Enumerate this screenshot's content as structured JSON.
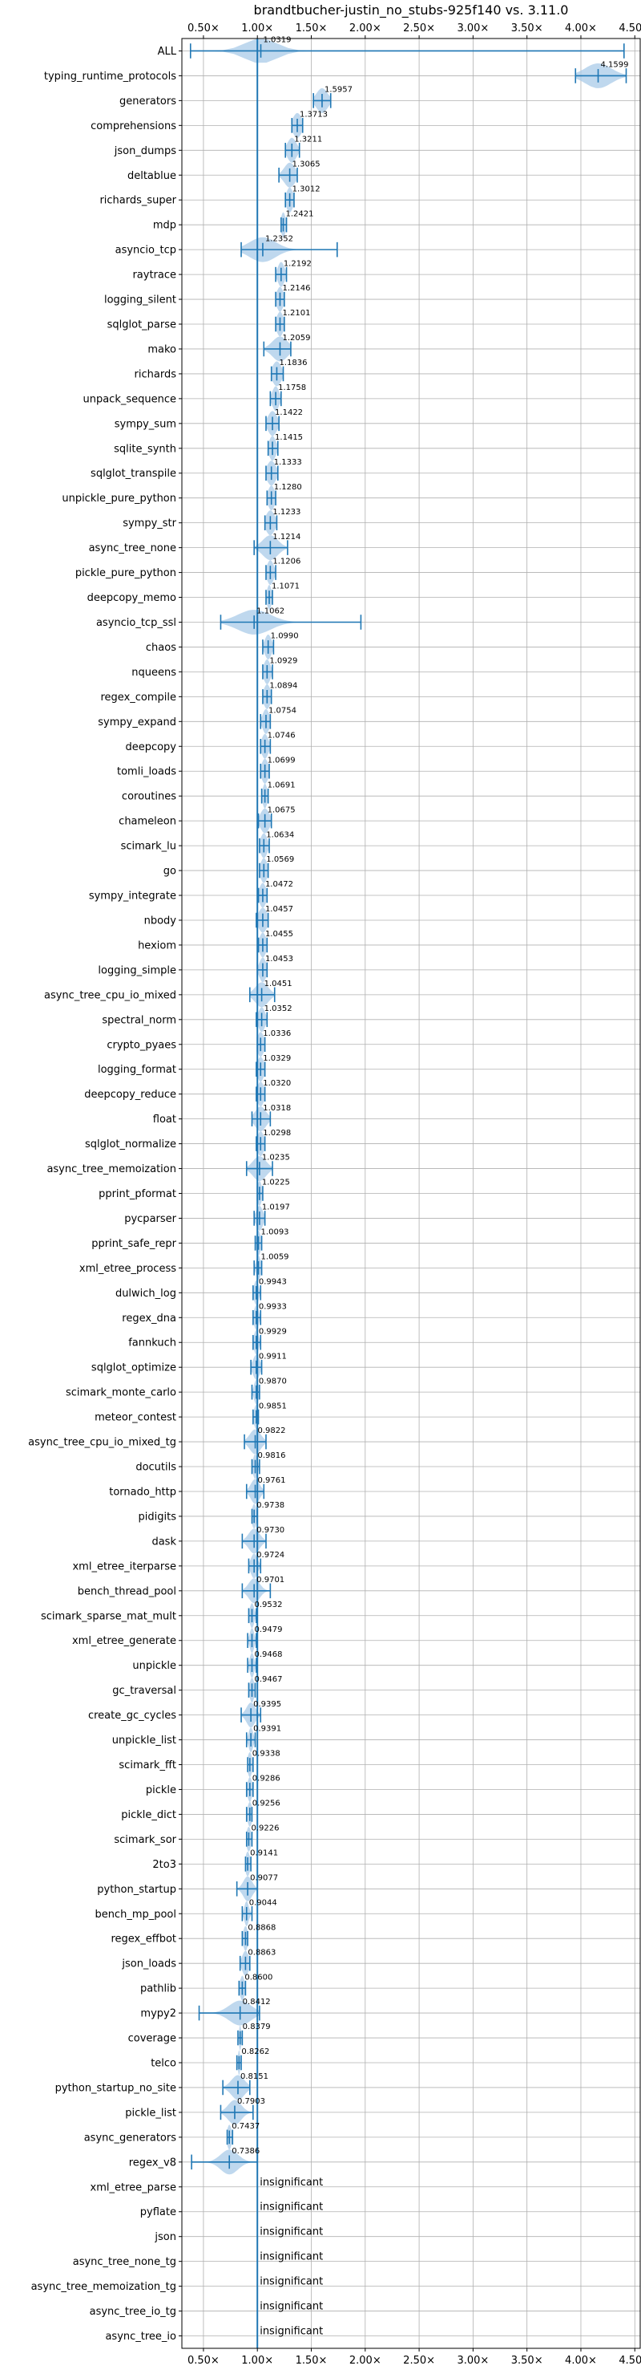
{
  "chart_data": {
    "type": "violin",
    "title": "brandtbucher-justin_no_stubs-925f140 vs. 3.11.0",
    "xlabel": "",
    "ylabel": "",
    "xlim": [
      0.3,
      4.55
    ],
    "grid": true,
    "x_ticks": [
      0.5,
      1.0,
      1.5,
      2.0,
      2.5,
      3.0,
      3.5,
      4.0,
      4.5
    ],
    "x_tick_labels": [
      "0.50×",
      "1.00×",
      "1.50×",
      "2.00×",
      "2.50×",
      "3.00×",
      "3.50×",
      "4.00×",
      "4.50×"
    ],
    "reference_line": 1.0,
    "insignificant_label": "insignificant",
    "colors": {
      "violin": "#a9cbe8",
      "line": "#1f77b4",
      "grid": "#b0b0b0",
      "text": "#000000"
    },
    "benchmarks": [
      {
        "name": "ALL",
        "label": "1.0319",
        "center": 1.0319,
        "min": 0.38,
        "max": 4.4,
        "spread": 0.15
      },
      {
        "name": "typing_runtime_protocols",
        "label": "4.1599",
        "center": 4.16,
        "min": 3.95,
        "max": 4.42,
        "spread": 0.12
      },
      {
        "name": "generators",
        "label": "1.5957",
        "center": 1.6,
        "min": 1.52,
        "max": 1.68,
        "spread": 0.05
      },
      {
        "name": "comprehensions",
        "label": "1.3713",
        "center": 1.37,
        "min": 1.32,
        "max": 1.42,
        "spread": 0.04
      },
      {
        "name": "json_dumps",
        "label": "1.3211",
        "center": 1.32,
        "min": 1.26,
        "max": 1.39,
        "spread": 0.04
      },
      {
        "name": "deltablue",
        "label": "1.3065",
        "center": 1.3,
        "min": 1.2,
        "max": 1.37,
        "spread": 0.05
      },
      {
        "name": "richards_super",
        "label": "1.3012",
        "center": 1.3,
        "min": 1.26,
        "max": 1.34,
        "spread": 0.03
      },
      {
        "name": "mdp",
        "label": "1.2421",
        "center": 1.24,
        "min": 1.22,
        "max": 1.27,
        "spread": 0.02
      },
      {
        "name": "asyncio_tcp",
        "label": "1.2352",
        "center": 1.05,
        "min": 0.85,
        "max": 1.74,
        "spread": 0.12
      },
      {
        "name": "raytrace",
        "label": "1.2192",
        "center": 1.22,
        "min": 1.17,
        "max": 1.27,
        "spread": 0.03
      },
      {
        "name": "logging_silent",
        "label": "1.2146",
        "center": 1.21,
        "min": 1.17,
        "max": 1.25,
        "spread": 0.03
      },
      {
        "name": "sqlglot_parse",
        "label": "1.2101",
        "center": 1.21,
        "min": 1.17,
        "max": 1.25,
        "spread": 0.03
      },
      {
        "name": "mako",
        "label": "1.2059",
        "center": 1.21,
        "min": 1.06,
        "max": 1.31,
        "spread": 0.07
      },
      {
        "name": "richards",
        "label": "1.1836",
        "center": 1.18,
        "min": 1.13,
        "max": 1.24,
        "spread": 0.04
      },
      {
        "name": "unpack_sequence",
        "label": "1.1758",
        "center": 1.17,
        "min": 1.12,
        "max": 1.22,
        "spread": 0.03
      },
      {
        "name": "sympy_sum",
        "label": "1.1422",
        "center": 1.14,
        "min": 1.08,
        "max": 1.2,
        "spread": 0.04
      },
      {
        "name": "sqlite_synth",
        "label": "1.1415",
        "center": 1.14,
        "min": 1.1,
        "max": 1.19,
        "spread": 0.03
      },
      {
        "name": "sqlglot_transpile",
        "label": "1.1333",
        "center": 1.13,
        "min": 1.08,
        "max": 1.19,
        "spread": 0.04
      },
      {
        "name": "unpickle_pure_python",
        "label": "1.1280",
        "center": 1.13,
        "min": 1.09,
        "max": 1.17,
        "spread": 0.03
      },
      {
        "name": "sympy_str",
        "label": "1.1233",
        "center": 1.12,
        "min": 1.07,
        "max": 1.18,
        "spread": 0.04
      },
      {
        "name": "async_tree_none",
        "label": "1.1214",
        "center": 1.12,
        "min": 0.97,
        "max": 1.28,
        "spread": 0.07
      },
      {
        "name": "pickle_pure_python",
        "label": "1.1206",
        "center": 1.12,
        "min": 1.08,
        "max": 1.17,
        "spread": 0.03
      },
      {
        "name": "deepcopy_memo",
        "label": "1.1071",
        "center": 1.11,
        "min": 1.08,
        "max": 1.14,
        "spread": 0.02
      },
      {
        "name": "asyncio_tcp_ssl",
        "label": "1.1062",
        "center": 0.97,
        "min": 0.66,
        "max": 1.96,
        "spread": 0.15
      },
      {
        "name": "chaos",
        "label": "1.0990",
        "center": 1.1,
        "min": 1.05,
        "max": 1.15,
        "spread": 0.03
      },
      {
        "name": "nqueens",
        "label": "1.0929",
        "center": 1.09,
        "min": 1.05,
        "max": 1.14,
        "spread": 0.03
      },
      {
        "name": "regex_compile",
        "label": "1.0894",
        "center": 1.09,
        "min": 1.05,
        "max": 1.13,
        "spread": 0.03
      },
      {
        "name": "sympy_expand",
        "label": "1.0754",
        "center": 1.08,
        "min": 1.03,
        "max": 1.12,
        "spread": 0.03
      },
      {
        "name": "deepcopy",
        "label": "1.0746",
        "center": 1.07,
        "min": 1.03,
        "max": 1.12,
        "spread": 0.03
      },
      {
        "name": "tomli_loads",
        "label": "1.0699",
        "center": 1.07,
        "min": 1.03,
        "max": 1.11,
        "spread": 0.03
      },
      {
        "name": "coroutines",
        "label": "1.0691",
        "center": 1.07,
        "min": 1.04,
        "max": 1.1,
        "spread": 0.02
      },
      {
        "name": "chameleon",
        "label": "1.0675",
        "center": 1.07,
        "min": 1.01,
        "max": 1.13,
        "spread": 0.04
      },
      {
        "name": "scimark_lu",
        "label": "1.0634",
        "center": 1.06,
        "min": 1.02,
        "max": 1.11,
        "spread": 0.03
      },
      {
        "name": "go",
        "label": "1.0569",
        "center": 1.06,
        "min": 1.02,
        "max": 1.1,
        "spread": 0.03
      },
      {
        "name": "sympy_integrate",
        "label": "1.0472",
        "center": 1.05,
        "min": 1.01,
        "max": 1.09,
        "spread": 0.03
      },
      {
        "name": "nbody",
        "label": "1.0457",
        "center": 1.05,
        "min": 0.99,
        "max": 1.1,
        "spread": 0.04
      },
      {
        "name": "hexiom",
        "label": "1.0455",
        "center": 1.05,
        "min": 1.01,
        "max": 1.09,
        "spread": 0.03
      },
      {
        "name": "logging_simple",
        "label": "1.0453",
        "center": 1.05,
        "min": 1.0,
        "max": 1.09,
        "spread": 0.03
      },
      {
        "name": "async_tree_cpu_io_mixed",
        "label": "1.0451",
        "center": 1.04,
        "min": 0.93,
        "max": 1.16,
        "spread": 0.06
      },
      {
        "name": "spectral_norm",
        "label": "1.0352",
        "center": 1.04,
        "min": 0.99,
        "max": 1.09,
        "spread": 0.03
      },
      {
        "name": "crypto_pyaes",
        "label": "1.0336",
        "center": 1.03,
        "min": 1.0,
        "max": 1.07,
        "spread": 0.03
      },
      {
        "name": "logging_format",
        "label": "1.0329",
        "center": 1.03,
        "min": 0.99,
        "max": 1.07,
        "spread": 0.03
      },
      {
        "name": "deepcopy_reduce",
        "label": "1.0320",
        "center": 1.03,
        "min": 0.99,
        "max": 1.07,
        "spread": 0.03
      },
      {
        "name": "float",
        "label": "1.0318",
        "center": 1.03,
        "min": 0.95,
        "max": 1.12,
        "spread": 0.05
      },
      {
        "name": "sqlglot_normalize",
        "label": "1.0298",
        "center": 1.03,
        "min": 0.99,
        "max": 1.07,
        "spread": 0.03
      },
      {
        "name": "async_tree_memoization",
        "label": "1.0235",
        "center": 1.02,
        "min": 0.9,
        "max": 1.14,
        "spread": 0.06
      },
      {
        "name": "pprint_pformat",
        "label": "1.0225",
        "center": 1.02,
        "min": 1.0,
        "max": 1.05,
        "spread": 0.02
      },
      {
        "name": "pycparser",
        "label": "1.0197",
        "center": 1.02,
        "min": 0.97,
        "max": 1.07,
        "spread": 0.03
      },
      {
        "name": "pprint_safe_repr",
        "label": "1.0093",
        "center": 1.01,
        "min": 0.98,
        "max": 1.04,
        "spread": 0.02
      },
      {
        "name": "xml_etree_process",
        "label": "1.0059",
        "center": 1.01,
        "min": 0.97,
        "max": 1.04,
        "spread": 0.02
      },
      {
        "name": "dulwich_log",
        "label": "0.9943",
        "center": 0.99,
        "min": 0.96,
        "max": 1.03,
        "spread": 0.02
      },
      {
        "name": "regex_dna",
        "label": "0.9933",
        "center": 0.99,
        "min": 0.96,
        "max": 1.03,
        "spread": 0.02
      },
      {
        "name": "fannkuch",
        "label": "0.9929",
        "center": 0.99,
        "min": 0.96,
        "max": 1.03,
        "spread": 0.02
      },
      {
        "name": "sqlglot_optimize",
        "label": "0.9911",
        "center": 0.99,
        "min": 0.94,
        "max": 1.04,
        "spread": 0.03
      },
      {
        "name": "scimark_monte_carlo",
        "label": "0.9870",
        "center": 0.99,
        "min": 0.95,
        "max": 1.02,
        "spread": 0.02
      },
      {
        "name": "meteor_contest",
        "label": "0.9851",
        "center": 0.99,
        "min": 0.96,
        "max": 1.01,
        "spread": 0.02
      },
      {
        "name": "async_tree_cpu_io_mixed_tg",
        "label": "0.9822",
        "center": 0.98,
        "min": 0.88,
        "max": 1.08,
        "spread": 0.05
      },
      {
        "name": "docutils",
        "label": "0.9816",
        "center": 0.98,
        "min": 0.95,
        "max": 1.02,
        "spread": 0.02
      },
      {
        "name": "tornado_http",
        "label": "0.9761",
        "center": 0.98,
        "min": 0.9,
        "max": 1.06,
        "spread": 0.04
      },
      {
        "name": "pidigits",
        "label": "0.9738",
        "center": 0.97,
        "min": 0.95,
        "max": 1.0,
        "spread": 0.02
      },
      {
        "name": "dask",
        "label": "0.9730",
        "center": 0.97,
        "min": 0.86,
        "max": 1.08,
        "spread": 0.05
      },
      {
        "name": "xml_etree_iterparse",
        "label": "0.9724",
        "center": 0.97,
        "min": 0.92,
        "max": 1.03,
        "spread": 0.03
      },
      {
        "name": "bench_thread_pool",
        "label": "0.9701",
        "center": 0.97,
        "min": 0.86,
        "max": 1.12,
        "spread": 0.05
      },
      {
        "name": "scimark_sparse_mat_mult",
        "label": "0.9532",
        "center": 0.95,
        "min": 0.92,
        "max": 0.99,
        "spread": 0.02
      },
      {
        "name": "xml_etree_generate",
        "label": "0.9479",
        "center": 0.95,
        "min": 0.91,
        "max": 0.99,
        "spread": 0.02
      },
      {
        "name": "unpickle",
        "label": "0.9468",
        "center": 0.95,
        "min": 0.91,
        "max": 0.99,
        "spread": 0.02
      },
      {
        "name": "gc_traversal",
        "label": "0.9467",
        "center": 0.95,
        "min": 0.92,
        "max": 0.98,
        "spread": 0.02
      },
      {
        "name": "create_gc_cycles",
        "label": "0.9395",
        "center": 0.94,
        "min": 0.85,
        "max": 1.03,
        "spread": 0.04
      },
      {
        "name": "unpickle_list",
        "label": "0.9391",
        "center": 0.94,
        "min": 0.9,
        "max": 0.98,
        "spread": 0.02
      },
      {
        "name": "scimark_fft",
        "label": "0.9338",
        "center": 0.93,
        "min": 0.91,
        "max": 0.96,
        "spread": 0.02
      },
      {
        "name": "pickle",
        "label": "0.9286",
        "center": 0.93,
        "min": 0.9,
        "max": 0.96,
        "spread": 0.02
      },
      {
        "name": "pickle_dict",
        "label": "0.9256",
        "center": 0.93,
        "min": 0.9,
        "max": 0.95,
        "spread": 0.02
      },
      {
        "name": "scimark_sor",
        "label": "0.9226",
        "center": 0.92,
        "min": 0.9,
        "max": 0.95,
        "spread": 0.02
      },
      {
        "name": "2to3",
        "label": "0.9141",
        "center": 0.91,
        "min": 0.89,
        "max": 0.94,
        "spread": 0.02
      },
      {
        "name": "python_startup",
        "label": "0.9077",
        "center": 0.91,
        "min": 0.81,
        "max": 1.0,
        "spread": 0.04
      },
      {
        "name": "bench_mp_pool",
        "label": "0.9044",
        "center": 0.9,
        "min": 0.86,
        "max": 0.95,
        "spread": 0.02
      },
      {
        "name": "regex_effbot",
        "label": "0.8868",
        "center": 0.89,
        "min": 0.86,
        "max": 0.91,
        "spread": 0.02
      },
      {
        "name": "json_loads",
        "label": "0.8863",
        "center": 0.89,
        "min": 0.84,
        "max": 0.93,
        "spread": 0.03
      },
      {
        "name": "pathlib",
        "label": "0.8600",
        "center": 0.86,
        "min": 0.83,
        "max": 0.89,
        "spread": 0.02
      },
      {
        "name": "mypy2",
        "label": "0.8412",
        "center": 0.84,
        "min": 0.46,
        "max": 1.02,
        "spread": 0.1
      },
      {
        "name": "coverage",
        "label": "0.8379",
        "center": 0.84,
        "min": 0.82,
        "max": 0.86,
        "spread": 0.01
      },
      {
        "name": "telco",
        "label": "0.8262",
        "center": 0.83,
        "min": 0.81,
        "max": 0.85,
        "spread": 0.01
      },
      {
        "name": "python_startup_no_site",
        "label": "0.8151",
        "center": 0.82,
        "min": 0.68,
        "max": 0.93,
        "spread": 0.06
      },
      {
        "name": "pickle_list",
        "label": "0.7903",
        "center": 0.79,
        "min": 0.66,
        "max": 0.96,
        "spread": 0.06
      },
      {
        "name": "async_generators",
        "label": "0.7437",
        "center": 0.74,
        "min": 0.72,
        "max": 0.77,
        "spread": 0.02
      },
      {
        "name": "regex_v8",
        "label": "0.7386",
        "center": 0.74,
        "min": 0.39,
        "max": 1.0,
        "spread": 0.08
      },
      {
        "name": "xml_etree_parse",
        "label": "insignificant",
        "center": null
      },
      {
        "name": "pyflate",
        "label": "insignificant",
        "center": null
      },
      {
        "name": "json",
        "label": "insignificant",
        "center": null
      },
      {
        "name": "async_tree_none_tg",
        "label": "insignificant",
        "center": null
      },
      {
        "name": "async_tree_memoization_tg",
        "label": "insignificant",
        "center": null
      },
      {
        "name": "async_tree_io_tg",
        "label": "insignificant",
        "center": null
      },
      {
        "name": "async_tree_io",
        "label": "insignificant",
        "center": null
      }
    ]
  }
}
